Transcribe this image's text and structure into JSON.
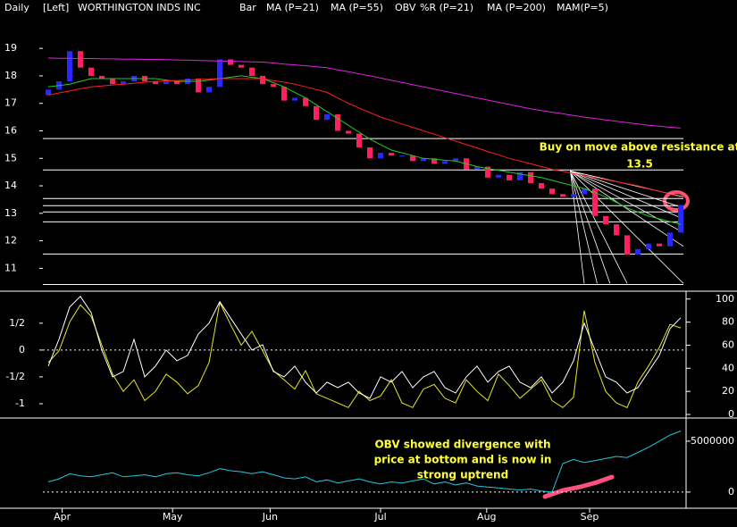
{
  "chart_data": [
    {
      "type": "candlestick",
      "interval": "Daily",
      "scale": "[Left]",
      "title": "WORTHINGTON INDS INC",
      "x": [
        0,
        1,
        2,
        3,
        4,
        5,
        6,
        7,
        8,
        9,
        10,
        11,
        12,
        13,
        14,
        15,
        16,
        17,
        18,
        19,
        20,
        21,
        22,
        23,
        24,
        25,
        26,
        27,
        28,
        29,
        30,
        31,
        32,
        33,
        34,
        35,
        36,
        37,
        38,
        39,
        40,
        41,
        42,
        43,
        44,
        45,
        46,
        47,
        48,
        49,
        50,
        51,
        52,
        53,
        54,
        55,
        56,
        57,
        58,
        59
      ],
      "xlim": [
        -0.5,
        59.5
      ],
      "ylim": [
        10.2,
        19.85
      ],
      "yticks": [
        11,
        12,
        13,
        14,
        15,
        16,
        17,
        18,
        19
      ],
      "series": [
        {
          "name": "Bar",
          "color": "#2828ff",
          "down_color": "#ff2060",
          "open": [
            17.3,
            17.5,
            17.8,
            18.9,
            18.3,
            18.0,
            17.9,
            17.7,
            17.8,
            18.0,
            17.8,
            17.7,
            17.8,
            17.7,
            17.9,
            17.4,
            17.6,
            18.6,
            18.4,
            18.3,
            18.0,
            17.7,
            17.6,
            17.1,
            17.2,
            16.9,
            16.4,
            16.6,
            16.0,
            15.9,
            15.4,
            15.0,
            15.2,
            15.1,
            15.1,
            14.9,
            15.0,
            14.8,
            14.9,
            15.0,
            14.6,
            14.7,
            14.3,
            14.4,
            14.2,
            14.5,
            14.1,
            13.9,
            13.7,
            13.6,
            13.7,
            13.9,
            12.9,
            12.6,
            12.2,
            11.5,
            11.7,
            11.9,
            11.8,
            12.3
          ],
          "close": [
            17.5,
            17.8,
            18.9,
            18.3,
            18.0,
            17.9,
            17.7,
            17.8,
            18.0,
            17.8,
            17.7,
            17.8,
            17.7,
            17.9,
            17.4,
            17.6,
            18.6,
            18.4,
            18.3,
            18.0,
            17.7,
            17.6,
            17.1,
            17.2,
            16.9,
            16.4,
            16.6,
            16.0,
            15.9,
            15.4,
            15.0,
            15.2,
            15.1,
            15.1,
            14.9,
            15.0,
            14.8,
            14.9,
            15.0,
            14.6,
            14.7,
            14.3,
            14.4,
            14.2,
            14.5,
            14.1,
            13.9,
            13.7,
            13.6,
            13.7,
            13.9,
            12.9,
            12.6,
            12.2,
            11.5,
            11.7,
            11.9,
            11.8,
            12.3,
            13.3
          ]
        },
        {
          "name": "MA (P=21)",
          "color": "#22cc22",
          "values": [
            17.6,
            17.65,
            17.7,
            17.8,
            17.9,
            17.9,
            17.9,
            17.9,
            17.9,
            17.9,
            17.9,
            17.85,
            17.8,
            17.8,
            17.8,
            17.85,
            17.9,
            17.95,
            18.0,
            17.95,
            17.9,
            17.75,
            17.6,
            17.4,
            17.2,
            16.95,
            16.7,
            16.45,
            16.2,
            15.95,
            15.7,
            15.5,
            15.3,
            15.2,
            15.1,
            15.0,
            14.97,
            14.93,
            14.9,
            14.8,
            14.7,
            14.63,
            14.57,
            14.5,
            14.43,
            14.37,
            14.3,
            14.2,
            14.1,
            14.0,
            13.9,
            13.75,
            13.6,
            13.4,
            13.2,
            13.05,
            12.9,
            12.8,
            12.7,
            12.6
          ]
        },
        {
          "name": "MA (P=55)",
          "color": "#ff2020",
          "values": [
            17.3,
            17.38,
            17.45,
            17.53,
            17.6,
            17.63,
            17.67,
            17.7,
            17.73,
            17.77,
            17.8,
            17.82,
            17.83,
            17.85,
            17.87,
            17.88,
            17.9,
            17.9,
            17.9,
            17.9,
            17.9,
            17.83,
            17.77,
            17.7,
            17.6,
            17.5,
            17.4,
            17.2,
            17.0,
            16.83,
            16.67,
            16.5,
            16.38,
            16.25,
            16.13,
            16.0,
            15.88,
            15.75,
            15.63,
            15.5,
            15.38,
            15.25,
            15.13,
            15.0,
            14.9,
            14.8,
            14.7,
            14.6,
            14.53,
            14.45,
            14.38,
            14.3,
            14.23,
            14.15,
            14.08,
            14.0,
            13.9,
            13.8,
            13.7,
            13.6
          ]
        },
        {
          "name": "MA (P=200)",
          "color": "#dd22dd",
          "values": [
            18.65,
            18.64,
            18.64,
            18.63,
            18.63,
            18.62,
            18.62,
            18.61,
            18.61,
            18.6,
            18.6,
            18.59,
            18.58,
            18.57,
            18.56,
            18.55,
            18.54,
            18.53,
            18.52,
            18.51,
            18.5,
            18.47,
            18.43,
            18.4,
            18.37,
            18.33,
            18.3,
            18.22,
            18.15,
            18.07,
            18.0,
            17.92,
            17.84,
            17.76,
            17.68,
            17.6,
            17.52,
            17.44,
            17.36,
            17.28,
            17.2,
            17.12,
            17.04,
            16.96,
            16.88,
            16.8,
            16.74,
            16.68,
            16.62,
            16.56,
            16.5,
            16.45,
            16.4,
            16.35,
            16.3,
            16.25,
            16.2,
            16.17,
            16.13,
            16.1
          ]
        }
      ],
      "levels": [
        15.72,
        14.58,
        13.54,
        13.28,
        13.05,
        12.69,
        11.52,
        10.41
      ],
      "fan": {
        "origin": [
          48.7,
          14.54
        ],
        "ends": [
          [
            59.25,
            13.6
          ],
          [
            59.25,
            13.2
          ],
          [
            59.25,
            12.8
          ],
          [
            59.25,
            12.3
          ],
          [
            59.25,
            11.8
          ],
          [
            59.25,
            10.45
          ],
          [
            54,
            10.45
          ],
          [
            52.4,
            10.45
          ],
          [
            51.2,
            10.45
          ],
          [
            50,
            10.45
          ]
        ]
      },
      "annotation": [
        "Buy on move above resistance at",
        "13.5"
      ]
    },
    {
      "type": "line",
      "x": [
        0,
        1,
        2,
        3,
        4,
        5,
        6,
        7,
        8,
        9,
        10,
        11,
        12,
        13,
        14,
        15,
        16,
        17,
        18,
        19,
        20,
        21,
        22,
        23,
        24,
        25,
        26,
        27,
        28,
        29,
        30,
        31,
        32,
        33,
        34,
        35,
        36,
        37,
        38,
        39,
        40,
        41,
        42,
        43,
        44,
        45,
        46,
        47,
        48,
        49,
        50,
        51,
        52,
        53,
        54,
        55,
        56,
        57,
        58,
        59
      ],
      "ylim": [
        -1.25,
        1.08
      ],
      "yticks": [
        {
          "value": 0.5,
          "label": "1/2"
        },
        0,
        {
          "value": -0.5,
          "label": "-1/2"
        },
        -1
      ],
      "y2lim": [
        -2.3,
        106
      ],
      "y2ticks": [
        0,
        20,
        40,
        60,
        80,
        100
      ],
      "series": [
        {
          "name": "%R (P=21)",
          "color": "#e8e820",
          "axis": "y2",
          "values": [
            45,
            55,
            80,
            95,
            85,
            60,
            35,
            20,
            30,
            12,
            20,
            35,
            28,
            18,
            25,
            45,
            97,
            78,
            60,
            72,
            55,
            38,
            30,
            22,
            38,
            18,
            14,
            10,
            6,
            20,
            12,
            16,
            30,
            10,
            6,
            22,
            26,
            14,
            10,
            30,
            20,
            12,
            35,
            25,
            14,
            22,
            30,
            12,
            6,
            15,
            90,
            45,
            20,
            10,
            6,
            28,
            42,
            58,
            78,
            75
          ]
        },
        {
          "name": "MAM(P=5)",
          "color": "#ffffff",
          "values": [
            -0.3,
            0.2,
            0.8,
            1.0,
            0.7,
            0.0,
            -0.5,
            -0.4,
            0.2,
            -0.5,
            -0.3,
            0.0,
            -0.2,
            -0.1,
            0.3,
            0.5,
            0.9,
            0.6,
            0.3,
            0.0,
            0.1,
            -0.4,
            -0.5,
            -0.3,
            -0.6,
            -0.8,
            -0.6,
            -0.7,
            -0.6,
            -0.8,
            -0.9,
            -0.5,
            -0.6,
            -0.4,
            -0.7,
            -0.5,
            -0.4,
            -0.7,
            -0.8,
            -0.5,
            -0.3,
            -0.6,
            -0.4,
            -0.3,
            -0.6,
            -0.7,
            -0.5,
            -0.8,
            -0.6,
            -0.2,
            0.5,
            0.0,
            -0.5,
            -0.6,
            -0.8,
            -0.7,
            -0.4,
            -0.1,
            0.4,
            0.6
          ]
        }
      ]
    },
    {
      "type": "line",
      "x": [
        0,
        1,
        2,
        3,
        4,
        5,
        6,
        7,
        8,
        9,
        10,
        11,
        12,
        13,
        14,
        15,
        16,
        17,
        18,
        19,
        20,
        21,
        22,
        23,
        24,
        25,
        26,
        27,
        28,
        29,
        30,
        31,
        32,
        33,
        34,
        35,
        36,
        37,
        38,
        39,
        40,
        41,
        42,
        43,
        44,
        45,
        46,
        47,
        48,
        49,
        50,
        51,
        52,
        53,
        54,
        55,
        56,
        57,
        58,
        59
      ],
      "y2lim": [
        -1500000,
        7100000
      ],
      "y2ticks": [
        0,
        5000000
      ],
      "xticks": [
        {
          "value": 1.3,
          "label": "Apr"
        },
        {
          "value": 11.6,
          "label": "May"
        },
        {
          "value": 20.7,
          "label": "Jun"
        },
        {
          "value": 31,
          "label": "Jul"
        },
        {
          "value": 40.9,
          "label": "Aug"
        },
        {
          "value": 50.5,
          "label": "Sep"
        }
      ],
      "series": [
        {
          "name": "OBV",
          "color": "#20c8e0",
          "axis": "y2",
          "values": [
            1000000,
            1300000,
            1800000,
            1600000,
            1500000,
            1700000,
            1900000,
            1500000,
            1600000,
            1700000,
            1500000,
            1800000,
            1900000,
            1700000,
            1600000,
            1900000,
            2300000,
            2100000,
            2000000,
            1800000,
            2000000,
            1700000,
            1400000,
            1300000,
            1500000,
            1000000,
            1200000,
            900000,
            1100000,
            1300000,
            1000000,
            800000,
            1000000,
            900000,
            1100000,
            1300000,
            800000,
            1000000,
            700000,
            900000,
            600000,
            500000,
            400000,
            300000,
            200000,
            300000,
            100000,
            0,
            2800000,
            3200000,
            2900000,
            3100000,
            3300000,
            3500000,
            3400000,
            3900000,
            4400000,
            5000000,
            5600000,
            6000000
          ]
        }
      ],
      "annotation": [
        "OBV showed divergence with",
        "price at bottom and is now in",
        "strong uptrend"
      ]
    }
  ]
}
